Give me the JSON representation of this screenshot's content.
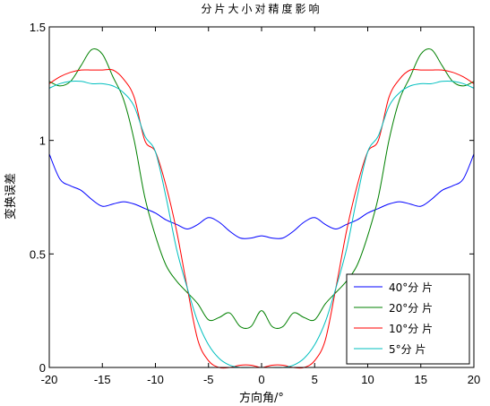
{
  "chart_data": {
    "type": "line",
    "title": "分片大小对精度影响",
    "xlabel": "方向角/°",
    "ylabel": "变换误差",
    "xlim": [
      -20,
      20
    ],
    "ylim": [
      0,
      1.5
    ],
    "xticks": [
      "-20",
      "-15",
      "-10",
      "-5",
      "0",
      "5",
      "10",
      "15",
      "20"
    ],
    "yticks": [
      "0",
      "0.5",
      "1",
      "1.5"
    ],
    "grid": false,
    "legend_position": "bottom-right",
    "series": [
      {
        "name": "40°分 片",
        "color": "#0000ff",
        "x": [
          -20,
          -19,
          -18,
          -17,
          -16,
          -15,
          -14,
          -13,
          -12,
          -11,
          -10,
          -9,
          -8,
          -7,
          -6,
          -5,
          -4,
          -3,
          -2,
          -1,
          0,
          1,
          2,
          3,
          4,
          5,
          6,
          7,
          8,
          9,
          10,
          11,
          12,
          13,
          14,
          15,
          16,
          17,
          18,
          19,
          20
        ],
        "y": [
          0.94,
          0.83,
          0.8,
          0.78,
          0.74,
          0.71,
          0.72,
          0.73,
          0.72,
          0.7,
          0.68,
          0.65,
          0.63,
          0.61,
          0.63,
          0.66,
          0.64,
          0.6,
          0.57,
          0.57,
          0.58,
          0.57,
          0.57,
          0.6,
          0.64,
          0.66,
          0.63,
          0.61,
          0.63,
          0.65,
          0.68,
          0.7,
          0.72,
          0.73,
          0.72,
          0.71,
          0.74,
          0.78,
          0.8,
          0.83,
          0.94
        ]
      },
      {
        "name": "20°分 片",
        "color": "#008000",
        "x": [
          -20,
          -19,
          -18,
          -17,
          -16,
          -15,
          -14,
          -13,
          -12,
          -11,
          -10,
          -9,
          -8,
          -7,
          -6,
          -5,
          -4,
          -3,
          -2,
          -1,
          0,
          1,
          2,
          3,
          4,
          5,
          6,
          7,
          8,
          9,
          10,
          11,
          12,
          13,
          14,
          15,
          16,
          17,
          18,
          19,
          20
        ],
        "y": [
          1.26,
          1.24,
          1.26,
          1.33,
          1.4,
          1.38,
          1.28,
          1.18,
          1.0,
          0.75,
          0.58,
          0.45,
          0.38,
          0.33,
          0.28,
          0.21,
          0.22,
          0.24,
          0.18,
          0.18,
          0.25,
          0.18,
          0.18,
          0.24,
          0.22,
          0.21,
          0.28,
          0.33,
          0.38,
          0.45,
          0.58,
          0.75,
          1.0,
          1.18,
          1.28,
          1.38,
          1.4,
          1.33,
          1.26,
          1.24,
          1.26
        ]
      },
      {
        "name": "10°分 片",
        "color": "#ff0000",
        "x": [
          -20,
          -19,
          -18,
          -17,
          -16,
          -15,
          -14,
          -13,
          -12,
          -11,
          -10,
          -9,
          -8,
          -7,
          -6,
          -5,
          -4,
          -3,
          -2,
          -1,
          0,
          1,
          2,
          3,
          4,
          5,
          6,
          7,
          8,
          9,
          10,
          11,
          12,
          13,
          14,
          15,
          16,
          17,
          18,
          19,
          20
        ],
        "y": [
          1.25,
          1.28,
          1.3,
          1.31,
          1.31,
          1.31,
          1.31,
          1.27,
          1.19,
          1.0,
          0.95,
          0.8,
          0.6,
          0.35,
          0.12,
          0.03,
          0.0,
          0.0,
          0.01,
          0.01,
          0.0,
          0.01,
          0.01,
          0.0,
          0.0,
          0.03,
          0.12,
          0.35,
          0.6,
          0.8,
          0.95,
          1.0,
          1.19,
          1.27,
          1.31,
          1.31,
          1.31,
          1.31,
          1.3,
          1.28,
          1.25
        ]
      },
      {
        "name": "5°分 片",
        "color": "#00bfbf",
        "x": [
          -20,
          -19,
          -18,
          -17,
          -16,
          -15,
          -14,
          -13,
          -12,
          -11,
          -10,
          -9,
          -8,
          -7,
          -6,
          -5,
          -4,
          -3,
          -2,
          -1,
          0,
          1,
          2,
          3,
          4,
          5,
          6,
          7,
          8,
          9,
          10,
          11,
          12,
          13,
          14,
          15,
          16,
          17,
          18,
          19,
          20
        ],
        "y": [
          1.23,
          1.25,
          1.26,
          1.26,
          1.25,
          1.25,
          1.24,
          1.21,
          1.15,
          1.02,
          0.95,
          0.75,
          0.52,
          0.35,
          0.2,
          0.1,
          0.04,
          0.01,
          0.0,
          0.0,
          0.0,
          0.0,
          0.0,
          0.01,
          0.04,
          0.1,
          0.2,
          0.35,
          0.52,
          0.75,
          0.95,
          1.02,
          1.15,
          1.21,
          1.24,
          1.25,
          1.25,
          1.26,
          1.26,
          1.25,
          1.23
        ]
      }
    ]
  }
}
